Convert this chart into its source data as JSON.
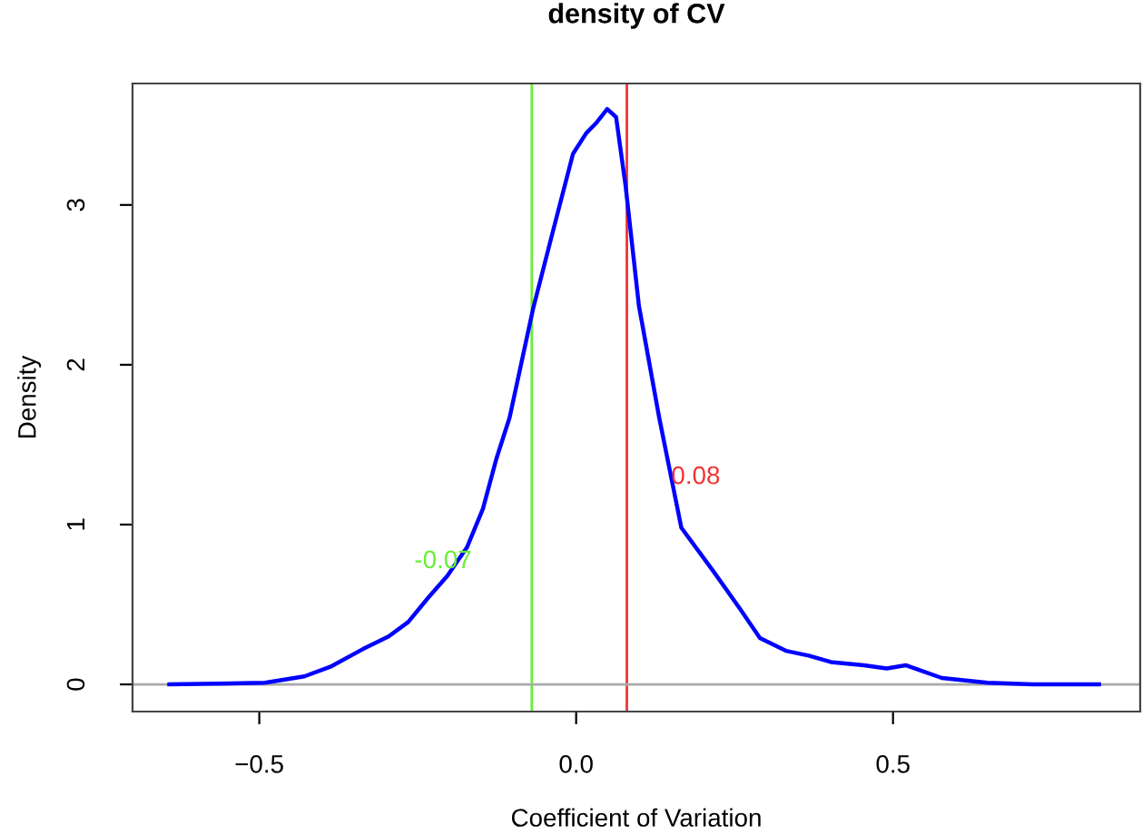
{
  "chart_data": {
    "type": "line",
    "title": "density of CV",
    "xlabel": "Coefficient of Variation",
    "ylabel": "Density",
    "x": [
      -0.642,
      -0.491,
      -0.46,
      -0.429,
      -0.388,
      -0.337,
      -0.296,
      -0.265,
      -0.234,
      -0.203,
      -0.172,
      -0.147,
      -0.126,
      -0.105,
      -0.068,
      -0.037,
      -0.005,
      0.016,
      0.031,
      0.049,
      0.063,
      0.078,
      0.099,
      0.131,
      0.166,
      0.218,
      0.259,
      0.29,
      0.331,
      0.367,
      0.402,
      0.454,
      0.49,
      0.52,
      0.577,
      0.649,
      0.72,
      0.825
    ],
    "series": [
      {
        "color": "#0000ff",
        "values": [
          0,
          0.01,
          0.03,
          0.05,
          0.11,
          0.22,
          0.3,
          0.39,
          0.54,
          0.68,
          0.86,
          1.1,
          1.41,
          1.67,
          2.35,
          2.83,
          3.32,
          3.45,
          3.51,
          3.6,
          3.55,
          3.12,
          2.37,
          1.67,
          0.98,
          0.7,
          0.47,
          0.29,
          0.21,
          0.18,
          0.14,
          0.12,
          0.1,
          0.12,
          0.04,
          0.01,
          0,
          0
        ]
      }
    ],
    "xlim": [
      -0.7,
      0.89
    ],
    "ylim": [
      -0.17,
      3.76
    ],
    "xticks": [
      {
        "value": -0.5,
        "label": "−0.5"
      },
      {
        "value": 0,
        "label": "0.0"
      },
      {
        "value": 0.5,
        "label": "0.5"
      }
    ],
    "yticks": [
      0,
      1,
      2,
      3
    ],
    "ref_lines": [
      {
        "axis": "x",
        "value": -0.07,
        "color": "#66ee33",
        "label": "-0.07"
      },
      {
        "axis": "x",
        "value": 0.08,
        "color": "#ee3333",
        "label": "0.08"
      },
      {
        "axis": "y",
        "value": 0,
        "color": "#aaaaaa"
      }
    ],
    "grid": false,
    "legend": false
  }
}
